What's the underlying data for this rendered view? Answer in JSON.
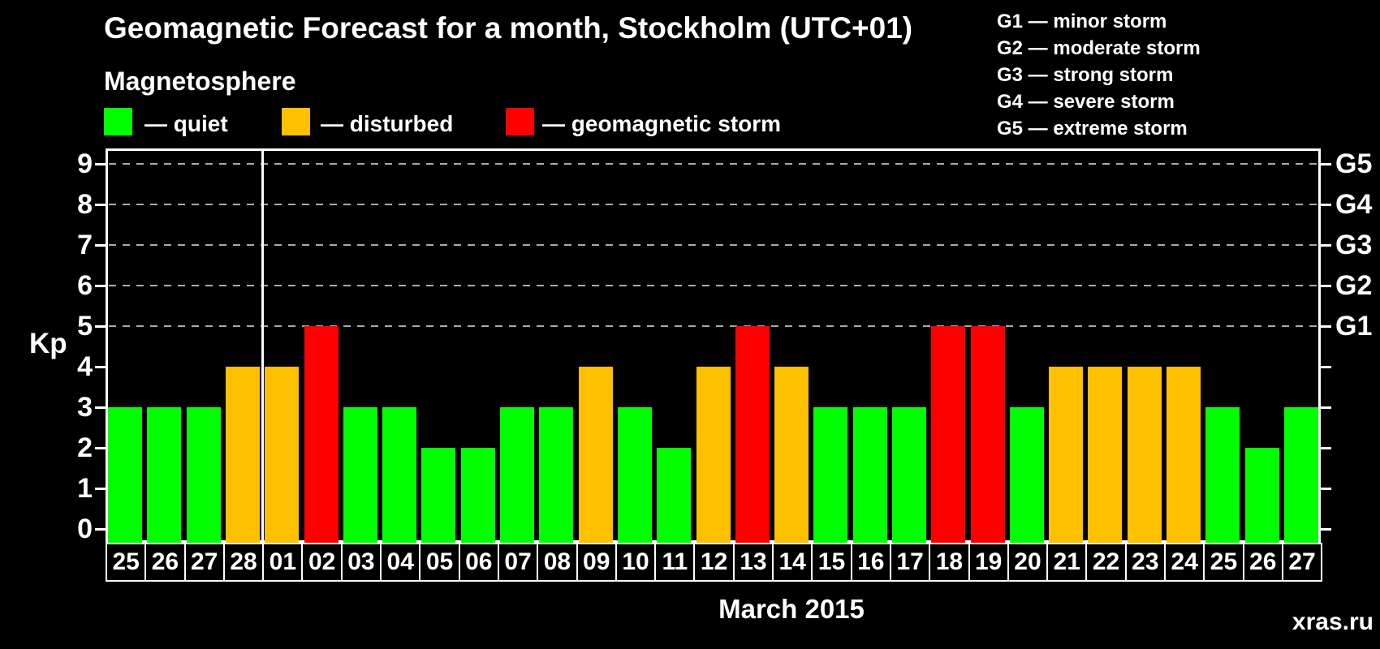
{
  "header": {
    "title": "Geomagnetic Forecast for a month, Stockholm (UTC+01)",
    "subtitle": "Magnetosphere"
  },
  "legend": {
    "items": [
      {
        "key": "quiet",
        "label": "— quiet"
      },
      {
        "key": "disturbed",
        "label": "— disturbed"
      },
      {
        "key": "storm",
        "label": "— geomagnetic storm"
      }
    ]
  },
  "storm_scale": {
    "items": [
      {
        "code": "G1",
        "label": "G1 — minor storm"
      },
      {
        "code": "G2",
        "label": "G2 — moderate storm"
      },
      {
        "code": "G3",
        "label": "G3 — strong storm"
      },
      {
        "code": "G4",
        "label": "G4 — severe storm"
      },
      {
        "code": "G5",
        "label": "G5 — extreme storm"
      }
    ]
  },
  "colors": {
    "quiet": "#00ff00",
    "disturbed": "#ffc000",
    "storm": "#ff0000",
    "axis": "#ffffff",
    "grid": "#aaaaaa",
    "background": "#000000",
    "watermark": "#7f7f7f"
  },
  "chart_data": {
    "type": "bar",
    "title": "Geomagnetic Forecast for a month, Stockholm (UTC+01)",
    "ylabel": "Kp",
    "xlabel": "March 2015",
    "ylim": [
      0,
      9
    ],
    "yticks": [
      0,
      1,
      2,
      3,
      4,
      5,
      6,
      7,
      8,
      9
    ],
    "grid": "dashed horizontal",
    "gridlines_at_kp": [
      5,
      6,
      7,
      8,
      9
    ],
    "right_axis": {
      "labels": [
        "G1",
        "G2",
        "G3",
        "G4",
        "G5"
      ],
      "at_kp": [
        5,
        6,
        7,
        8,
        9
      ]
    },
    "legend_position": "top",
    "categories": [
      "25",
      "26",
      "27",
      "28",
      "01",
      "02",
      "03",
      "04",
      "05",
      "06",
      "07",
      "08",
      "09",
      "10",
      "11",
      "12",
      "13",
      "14",
      "15",
      "16",
      "17",
      "18",
      "19",
      "20",
      "21",
      "22",
      "23",
      "24",
      "25",
      "26",
      "27"
    ],
    "values": [
      3,
      3,
      3,
      4,
      4,
      5,
      3,
      3,
      2,
      2,
      3,
      3,
      4,
      3,
      2,
      4,
      5,
      4,
      3,
      3,
      3,
      5,
      5,
      3,
      4,
      4,
      4,
      4,
      3,
      2,
      3
    ],
    "statuses": [
      "quiet",
      "quiet",
      "quiet",
      "disturbed",
      "disturbed",
      "storm",
      "quiet",
      "quiet",
      "quiet",
      "quiet",
      "quiet",
      "quiet",
      "disturbed",
      "quiet",
      "quiet",
      "disturbed",
      "storm",
      "disturbed",
      "quiet",
      "quiet",
      "quiet",
      "storm",
      "storm",
      "quiet",
      "disturbed",
      "disturbed",
      "disturbed",
      "disturbed",
      "quiet",
      "quiet",
      "quiet"
    ],
    "month_separator_after_index": 3
  },
  "footer": {
    "watermark": "xras.ru"
  }
}
